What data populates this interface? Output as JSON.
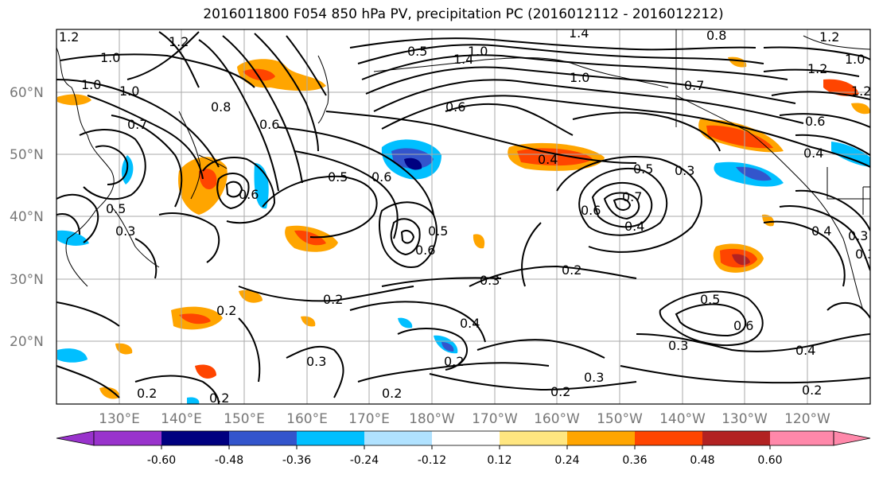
{
  "title": "2016011800 F054 850 hPa PV, precipitation PC (2016012112 - 2016012212)",
  "lat_labels": [
    "60°N",
    "50°N",
    "40°N",
    "30°N",
    "20°N"
  ],
  "lon_labels": [
    "130°E",
    "140°E",
    "150°E",
    "160°E",
    "170°E",
    "180°W",
    "170°W",
    "160°W",
    "150°W",
    "140°W",
    "130°W",
    "120°W"
  ],
  "colorbar": {
    "colors": [
      "#9933cc",
      "#000080",
      "#3355cc",
      "#00bfff",
      "#b0e2ff",
      "#ffffff",
      "#ffe680",
      "#ffa500",
      "#ff4500",
      "#b22222",
      "#ff88aa"
    ],
    "tick_labels": [
      "-0.60",
      "-0.48",
      "-0.36",
      "-0.24",
      "-0.12",
      "0.12",
      "0.24",
      "0.36",
      "0.48",
      "0.60"
    ]
  },
  "contour_labels": [
    "1.2",
    "1.0",
    "1.2",
    "1.0",
    "1.4",
    "1.4",
    "1.2",
    "1.0",
    "0.8",
    "1.0",
    "1.2",
    "1.0",
    "1.2",
    "0.5",
    "0.6",
    "1.0",
    "0.7",
    "0.8",
    "0.7",
    "0.6",
    "0.6",
    "0.4",
    "0.4",
    "0.5",
    "0.6",
    "0.5",
    "0.3",
    "0.5",
    "0.7",
    "0.6",
    "0.4",
    "0.4",
    "0.3",
    "0.3",
    "0.2",
    "0.6",
    "0.5",
    "0.6",
    "0.3",
    "0.2",
    "0.2",
    "0.4",
    "0.5",
    "0.6",
    "0.3",
    "0.3",
    "0.2",
    "0.4",
    "0.2",
    "0.2",
    "0.3",
    "0.2",
    "0.2",
    "0.3",
    "0.2"
  ],
  "legend": {
    "fill_name": "precipitation PC",
    "line_name": "850 hPa PV"
  }
}
